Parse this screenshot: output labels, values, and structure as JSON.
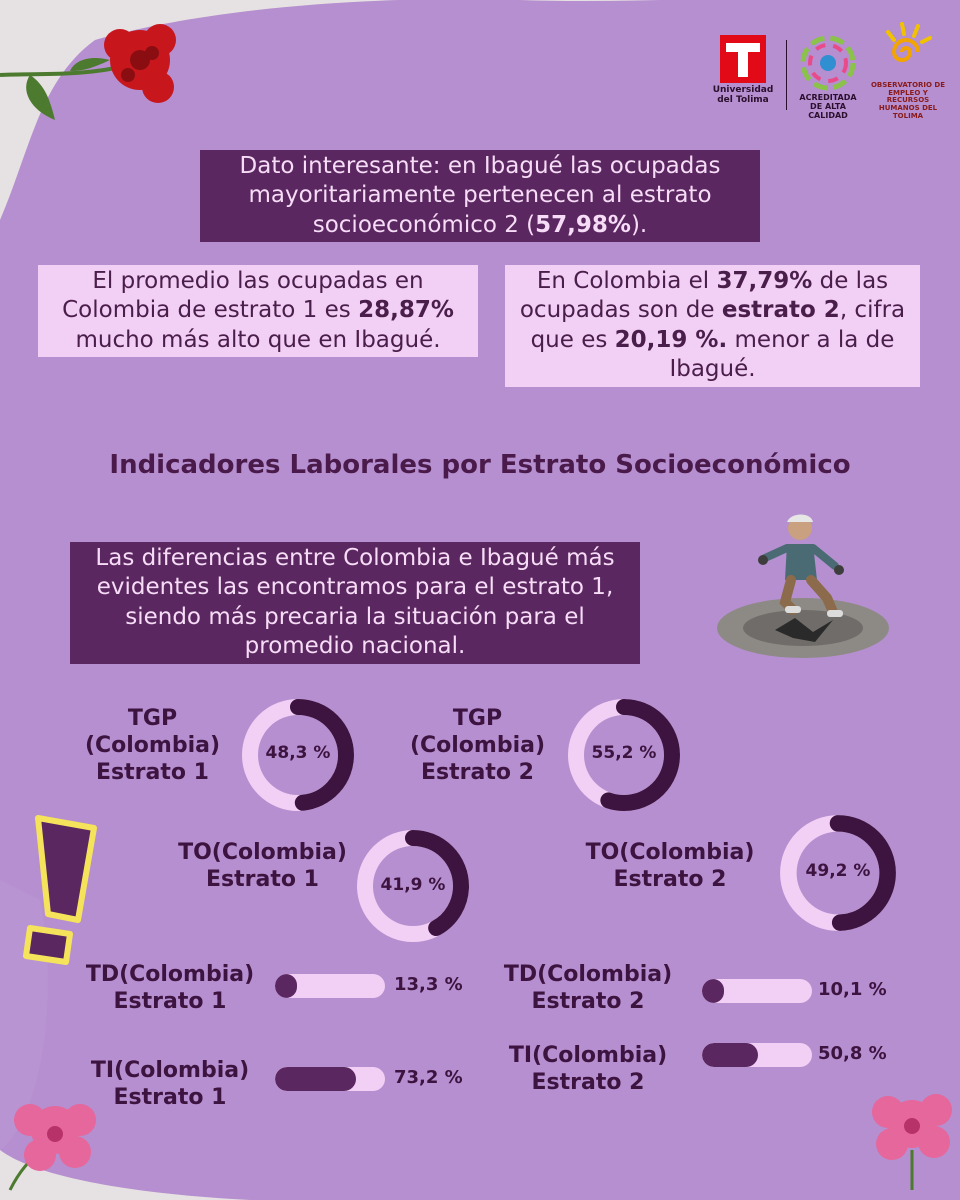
{
  "logos": {
    "ut_name": "Universidad del Tolima",
    "accreditation": "ACREDITADA DE ALTA CALIDAD",
    "observatory": "OBSERVATORIO DE EMPLEO Y RECURSOS HUMANOS DEL TOLIMA"
  },
  "fact_box": {
    "text": "Dato interesante: en Ibagué las ocupadas mayoritariamente pertenecen al estrato socioeconómico 2 (",
    "bold": "57,98%",
    "tail": ")."
  },
  "left_note": {
    "p1": "El promedio las ocupadas en Colombia de estrato 1 es ",
    "bold": "28,87%",
    "p2": " mucho más alto que en Ibagué."
  },
  "right_note": {
    "p1": "En Colombia el ",
    "bold1": "37,79%",
    "p2": " de las ocupadas son de ",
    "bold2": "estrato 2",
    "p3": ", cifra que es ",
    "bold3": "20,19 %.",
    "p4": " menor a la de Ibagué."
  },
  "section_title": "Indicadores Laborales por Estrato Socioeconómico",
  "highlight_box": "Las diferencias entre Colombia e Ibagué más evidentes las encontramos para el estrato 1, siendo más precaria la situación para el promedio nacional.",
  "indicators": {
    "tgp1": {
      "l1": "TGP",
      "l2": "(Colombia)",
      "l3": "Estrato 1",
      "value_label": "48,3 %",
      "value": 48.3
    },
    "tgp2": {
      "l1": "TGP",
      "l2": "(Colombia)",
      "l3": "Estrato 2",
      "value_label": "55,2 %",
      "value": 55.2
    },
    "to1": {
      "l1": "TO(Colombia)",
      "l2": "Estrato 1",
      "value_label": "41,9 %",
      "value": 41.9
    },
    "to2": {
      "l1": "TO(Colombia)",
      "l2": "Estrato 2",
      "value_label": "49,2 %",
      "value": 49.2
    },
    "td1": {
      "l1": "TD(Colombia)",
      "l2": "Estrato 1",
      "value_label": "13,3 %",
      "value": 13.3
    },
    "td2": {
      "l1": "TD(Colombia)",
      "l2": "Estrato 2",
      "value_label": "10,1 %",
      "value": 10.1
    },
    "ti1": {
      "l1": "TI(Colombia)",
      "l2": "Estrato 1",
      "value_label": "73,2 %",
      "value": 73.2
    },
    "ti2": {
      "l1": "TI(Colombia)",
      "l2": "Estrato 2",
      "value_label": "50,8 %",
      "value": 50.8
    }
  },
  "colors": {
    "lilac": "#b58fcf",
    "dark_purple": "#3d1340",
    "pink": "#f2cff4"
  }
}
